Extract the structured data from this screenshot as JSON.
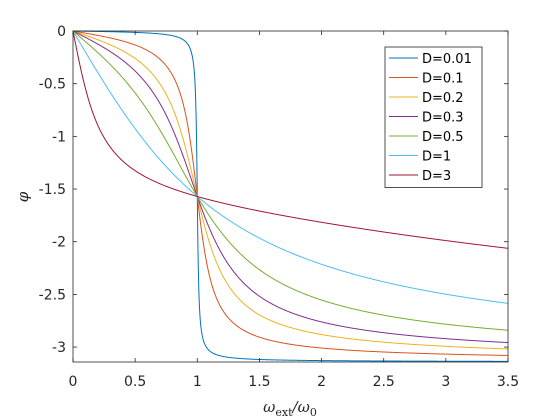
{
  "chart_data": {
    "type": "line",
    "title": "",
    "xlabel": {
      "main": "ω",
      "sub1": "ext",
      "slash": "/ω",
      "sub2": "0"
    },
    "ylabel": "φ",
    "xlim": [
      0,
      3.5
    ],
    "ylim": [
      -3.1416,
      0
    ],
    "xticks": [
      0,
      0.5,
      1,
      1.5,
      2,
      2.5,
      3,
      3.5
    ],
    "xtick_labels": [
      "0",
      "0.5",
      "1",
      "1.5",
      "2",
      "2.5",
      "3",
      "3.5"
    ],
    "yticks": [
      0,
      -0.5,
      -1,
      -1.5,
      -2,
      -2.5,
      -3
    ],
    "ytick_labels": [
      "0",
      "-0.5",
      "-1",
      "-1.5",
      "-2",
      "-2.5",
      "-3"
    ],
    "grid": false,
    "legend_position": "top-right",
    "series": [
      {
        "name": "D=0.01",
        "D": 0.01,
        "color": "#0072BD"
      },
      {
        "name": "D=0.1",
        "D": 0.1,
        "color": "#D95319"
      },
      {
        "name": "D=0.2",
        "D": 0.2,
        "color": "#EDB120"
      },
      {
        "name": "D=0.3",
        "D": 0.3,
        "color": "#7E2F8E"
      },
      {
        "name": "D=0.5",
        "D": 0.5,
        "color": "#77AC30"
      },
      {
        "name": "D=1",
        "D": 1,
        "color": "#4DBEEE"
      },
      {
        "name": "D=3",
        "D": 3,
        "color": "#A2142F"
      }
    ]
  }
}
